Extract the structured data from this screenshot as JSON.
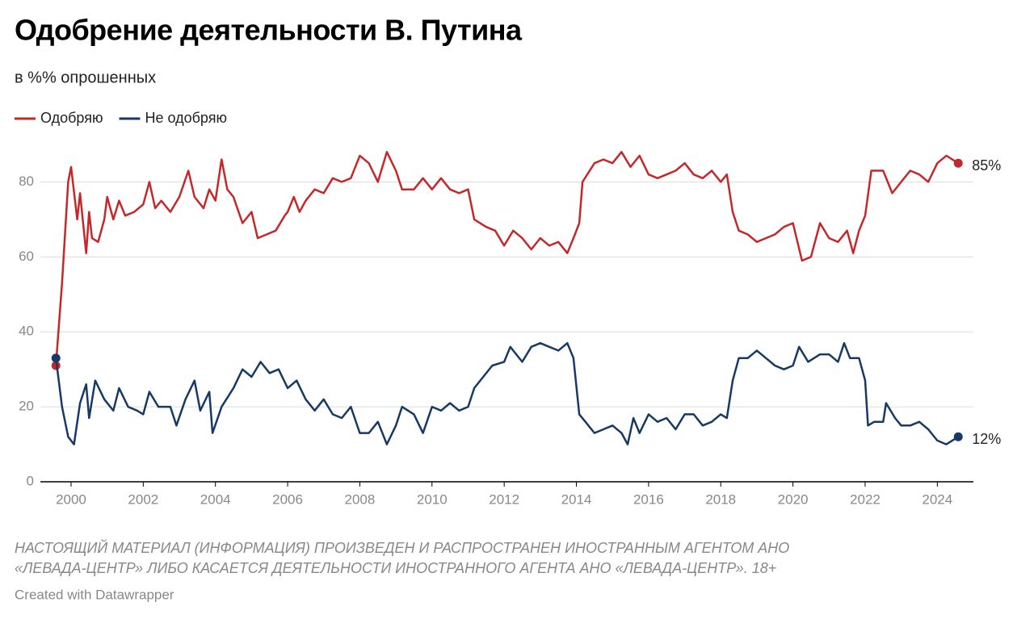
{
  "chart_data": {
    "type": "line",
    "title": "Одобрение деятельности В. Путина",
    "subtitle": "в %% опрошенных",
    "note": "НАСТОЯЩИЙ МАТЕРИАЛ (ИНФОРМАЦИЯ) ПРОИЗВЕДЕН И РАСПРОСТРАНЕН ИНОСТРАННЫМ АГЕНТОМ АНО «ЛЕВАДА-ЦЕНТР» ЛИБО КАСАЕТСЯ ДЕЯТЕЛЬНОСТИ ИНОСТРАННОГО АГЕНТА АНО «ЛЕВАДА-ЦЕНТР». 18+",
    "credit": "Created with Datawrapper",
    "xlim": [
      1999.15,
      2025.0
    ],
    "xticks": [
      2000,
      2002,
      2004,
      2006,
      2008,
      2010,
      2012,
      2014,
      2016,
      2018,
      2020,
      2022,
      2024
    ],
    "ylim": [
      0,
      90
    ],
    "yticks": [
      0,
      20,
      40,
      60,
      80
    ],
    "grid": true,
    "legend": "top-left",
    "series": [
      {
        "name": "Одобряю",
        "color": "#c4282a",
        "end_label": "85%",
        "x": [
          1999.58,
          1999.75,
          1999.92,
          2000.0,
          2000.17,
          2000.25,
          2000.42,
          2000.5,
          2000.58,
          2000.75,
          2000.92,
          2001.0,
          2001.17,
          2001.33,
          2001.5,
          2001.75,
          2002.0,
          2002.17,
          2002.33,
          2002.5,
          2002.75,
          2003.0,
          2003.25,
          2003.42,
          2003.67,
          2003.83,
          2004.0,
          2004.17,
          2004.33,
          2004.5,
          2004.75,
          2005.0,
          2005.17,
          2005.42,
          2005.67,
          2005.92,
          2006.0,
          2006.17,
          2006.33,
          2006.5,
          2006.75,
          2007.0,
          2007.25,
          2007.5,
          2007.75,
          2008.0,
          2008.25,
          2008.5,
          2008.75,
          2009.0,
          2009.17,
          2009.5,
          2009.75,
          2010.0,
          2010.25,
          2010.5,
          2010.75,
          2011.0,
          2011.17,
          2011.5,
          2011.75,
          2012.0,
          2012.25,
          2012.5,
          2012.75,
          2013.0,
          2013.25,
          2013.5,
          2013.75,
          2013.92,
          2014.08,
          2014.17,
          2014.5,
          2014.75,
          2015.0,
          2015.25,
          2015.5,
          2015.75,
          2016.0,
          2016.25,
          2016.5,
          2016.75,
          2017.0,
          2017.25,
          2017.5,
          2017.75,
          2018.0,
          2018.17,
          2018.33,
          2018.5,
          2018.75,
          2019.0,
          2019.25,
          2019.5,
          2019.75,
          2020.0,
          2020.25,
          2020.5,
          2020.75,
          2021.0,
          2021.25,
          2021.5,
          2021.67,
          2021.83,
          2022.0,
          2022.17,
          2022.5,
          2022.75,
          2023.0,
          2023.25,
          2023.5,
          2023.75,
          2024.0,
          2024.25,
          2024.58
        ],
        "values": [
          31,
          53,
          80,
          84,
          70,
          77,
          61,
          72,
          65,
          64,
          70,
          76,
          70,
          75,
          71,
          72,
          74,
          80,
          73,
          75,
          72,
          76,
          83,
          76,
          73,
          78,
          75,
          86,
          78,
          76,
          69,
          72,
          65,
          66,
          67,
          71,
          72,
          76,
          72,
          75,
          78,
          77,
          81,
          80,
          81,
          87,
          85,
          80,
          88,
          83,
          78,
          78,
          81,
          78,
          81,
          78,
          77,
          78,
          70,
          68,
          67,
          63,
          67,
          65,
          62,
          65,
          63,
          64,
          61,
          65,
          69,
          80,
          85,
          86,
          85,
          88,
          84,
          87,
          82,
          81,
          82,
          83,
          85,
          82,
          81,
          83,
          80,
          82,
          72,
          67,
          66,
          64,
          65,
          66,
          68,
          69,
          59,
          60,
          69,
          65,
          64,
          67,
          61,
          67,
          71,
          83,
          83,
          77,
          80,
          83,
          82,
          80,
          85,
          87,
          85
        ]
      },
      {
        "name": "Не одобряю",
        "color": "#163a64",
        "end_label": "12%",
        "x": [
          1999.58,
          1999.75,
          1999.92,
          2000.08,
          2000.25,
          2000.42,
          2000.5,
          2000.67,
          2000.92,
          2001.17,
          2001.33,
          2001.58,
          2001.83,
          2002.0,
          2002.17,
          2002.42,
          2002.75,
          2002.92,
          2003.17,
          2003.42,
          2003.58,
          2003.83,
          2003.92,
          2004.17,
          2004.5,
          2004.75,
          2005.0,
          2005.25,
          2005.5,
          2005.75,
          2006.0,
          2006.25,
          2006.5,
          2006.75,
          2007.0,
          2007.25,
          2007.5,
          2007.75,
          2008.0,
          2008.25,
          2008.5,
          2008.75,
          2009.0,
          2009.17,
          2009.5,
          2009.75,
          2010.0,
          2010.25,
          2010.5,
          2010.75,
          2011.0,
          2011.17,
          2011.42,
          2011.67,
          2012.0,
          2012.17,
          2012.5,
          2012.75,
          2013.0,
          2013.25,
          2013.5,
          2013.75,
          2013.92,
          2014.08,
          2014.25,
          2014.5,
          2014.75,
          2015.0,
          2015.25,
          2015.42,
          2015.58,
          2015.75,
          2016.0,
          2016.25,
          2016.5,
          2016.75,
          2017.0,
          2017.25,
          2017.5,
          2017.75,
          2018.0,
          2018.17,
          2018.33,
          2018.5,
          2018.75,
          2019.0,
          2019.25,
          2019.5,
          2019.75,
          2020.0,
          2020.17,
          2020.42,
          2020.75,
          2021.0,
          2021.25,
          2021.42,
          2021.58,
          2021.83,
          2022.0,
          2022.08,
          2022.25,
          2022.5,
          2022.58,
          2022.83,
          2023.0,
          2023.25,
          2023.5,
          2023.75,
          2024.0,
          2024.25,
          2024.58
        ],
        "values": [
          33,
          20,
          12,
          10,
          21,
          26,
          17,
          27,
          22,
          19,
          25,
          20,
          19,
          18,
          24,
          20,
          20,
          15,
          22,
          27,
          19,
          24,
          13,
          20,
          25,
          30,
          28,
          32,
          29,
          30,
          25,
          27,
          22,
          19,
          22,
          18,
          17,
          20,
          13,
          13,
          16,
          10,
          15,
          20,
          18,
          13,
          20,
          19,
          21,
          19,
          20,
          25,
          28,
          31,
          32,
          36,
          32,
          36,
          37,
          36,
          35,
          37,
          33,
          18,
          16,
          13,
          14,
          15,
          13,
          10,
          17,
          13,
          18,
          16,
          17,
          14,
          18,
          18,
          15,
          16,
          18,
          17,
          27,
          33,
          33,
          35,
          33,
          31,
          30,
          31,
          36,
          32,
          34,
          34,
          32,
          37,
          33,
          33,
          27,
          15,
          16,
          16,
          21,
          17,
          15,
          15,
          16,
          14,
          11,
          10,
          12
        ]
      }
    ]
  }
}
